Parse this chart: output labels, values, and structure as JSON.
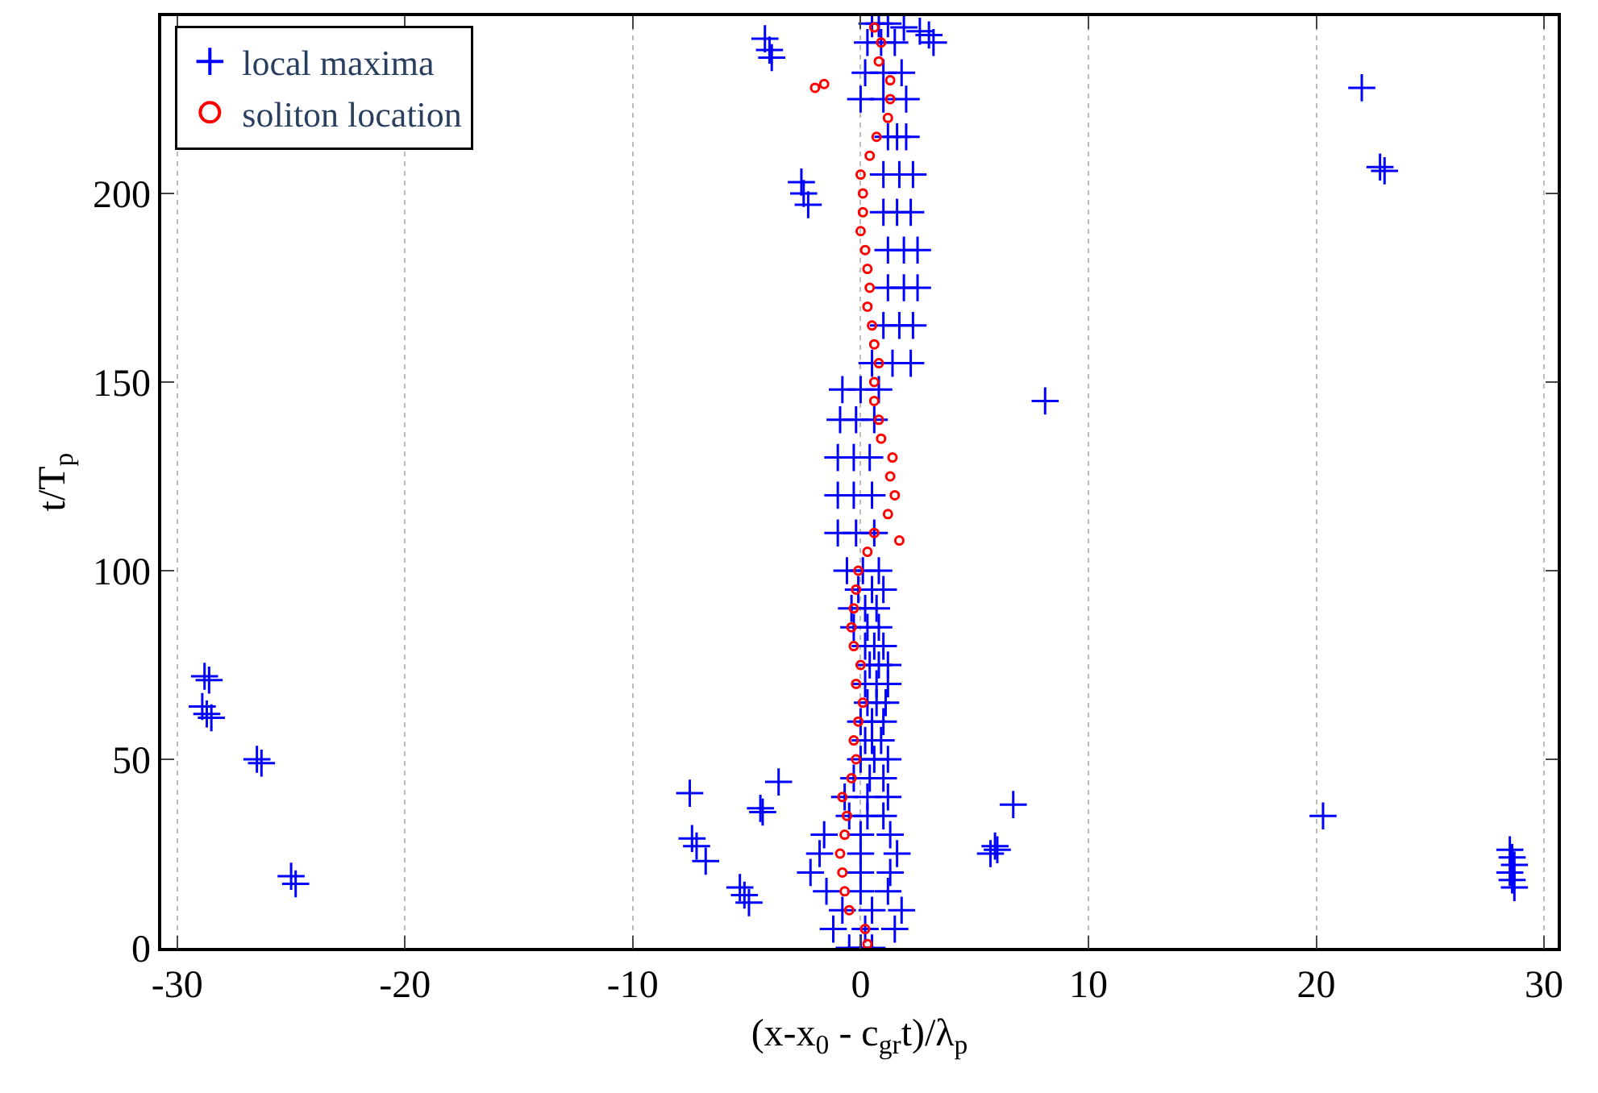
{
  "chart_data": {
    "type": "scatter",
    "xlabel": "(x-x$_{0}$ - c$_{gr}$t)/λ$_{p}$",
    "ylabel": "t/T$_{p}$",
    "xlim": [
      -30.7,
      30.6
    ],
    "ylim": [
      0,
      247
    ],
    "xticks": [
      -30,
      -20,
      -10,
      0,
      10,
      20,
      30
    ],
    "yticks": [
      0,
      50,
      100,
      150,
      200
    ],
    "grid": "x",
    "legend": "top left",
    "series": [
      {
        "name": "local maxima",
        "color": "#0000ff",
        "marker": "cross",
        "x": [
          -28.8,
          -28.6,
          -28.9,
          -28.7,
          -28.5,
          -26.5,
          -26.3,
          -25,
          -24.8,
          -7.5,
          -7.4,
          -7.2,
          -6.8,
          -5.3,
          -5.1,
          -4.9,
          -4.4,
          -4.3,
          -3.6,
          -4.2,
          -4.0,
          -3.9,
          -2.6,
          -2.5,
          -2.3,
          2.6,
          3.0,
          3.2,
          1.9,
          22,
          22.8,
          23,
          8.1,
          5.7,
          5.9,
          6.0,
          6.7,
          20.3,
          28.5,
          28.6,
          28.7,
          28.5,
          28.6,
          28.7,
          -0.5,
          0,
          0.5,
          -1.2,
          0.2,
          1.5,
          -0.8,
          0.5,
          1.8,
          -1.5,
          0,
          1.2,
          -2.2,
          0,
          1.3,
          -1.8,
          0,
          1.6,
          -1.6,
          0,
          1.3,
          -0.5,
          0.3,
          1.0,
          -0.7,
          0.3,
          1.2,
          -0.3,
          0.4,
          1.0,
          0,
          0.6,
          1.2,
          0.2,
          0.5,
          0.9,
          0,
          0.5,
          1.0,
          0.3,
          0.7,
          1.1,
          0.2,
          0.7,
          1.2,
          0.4,
          0.8,
          1.2,
          0.2,
          0.6,
          1.0,
          -0.3,
          0.3,
          0.8,
          -0.4,
          0.2,
          0.7,
          -0.1,
          0.5,
          1.0,
          -0.6,
          0.1,
          0.8,
          -1.0,
          -0.2,
          0.6,
          -1.0,
          -0.3,
          0.5,
          -1.0,
          -0.3,
          0.4,
          -0.9,
          -0.2,
          0.6,
          -0.8,
          0,
          0.8,
          0.5,
          1.4,
          2.2,
          1.0,
          1.7,
          2.3,
          1.2,
          1.9,
          2.5,
          1.2,
          1.9,
          2.5,
          1.0,
          1.6,
          2.2,
          1.0,
          1.7,
          2.3,
          1.2,
          1.6,
          2.0,
          0,
          1.0,
          2.0,
          0.2,
          1.0,
          1.8,
          0.3,
          0.9,
          1.5,
          0.5,
          0.8,
          1.2
        ],
        "values": [
          72,
          71,
          64,
          62,
          61,
          50,
          49,
          19,
          17,
          41,
          29,
          27,
          23,
          16,
          14,
          12,
          37,
          36,
          44,
          241,
          238,
          236,
          203,
          200,
          197,
          243,
          242,
          240,
          244,
          228,
          207,
          206,
          145,
          25,
          27,
          26,
          38,
          35,
          26,
          24,
          22,
          20,
          18,
          16,
          0,
          0,
          0,
          5,
          5,
          5,
          10,
          10,
          10,
          15,
          15,
          15,
          20,
          20,
          20,
          25,
          25,
          25,
          30,
          30,
          30,
          35,
          35,
          35,
          40,
          40,
          40,
          45,
          45,
          45,
          50,
          50,
          50,
          55,
          55,
          55,
          60,
          60,
          60,
          65,
          65,
          65,
          70,
          70,
          70,
          75,
          75,
          75,
          80,
          80,
          80,
          85,
          85,
          85,
          90,
          90,
          90,
          95,
          95,
          95,
          100,
          100,
          100,
          110,
          110,
          110,
          120,
          120,
          120,
          130,
          130,
          130,
          140,
          140,
          140,
          148,
          148,
          148,
          155,
          155,
          155,
          165,
          165,
          165,
          175,
          175,
          175,
          185,
          185,
          185,
          195,
          195,
          195,
          205,
          205,
          205,
          215,
          215,
          215,
          225,
          225,
          225,
          232,
          232,
          232,
          240,
          240,
          240,
          245,
          245,
          245
        ]
      },
      {
        "name": "soliton location",
        "color": "#ff0000",
        "marker": "circle",
        "x": [
          0.3,
          0.2,
          -0.5,
          -0.7,
          -0.8,
          -0.9,
          -0.7,
          -0.6,
          -0.8,
          -0.4,
          -0.2,
          -0.3,
          -0.1,
          0.1,
          -0.2,
          0.0,
          -0.3,
          -0.4,
          -0.3,
          -0.2,
          -0.1,
          0.3,
          0.6,
          1.2,
          1.5,
          1.3,
          1.4,
          0.9,
          0.8,
          0.6,
          0.6,
          0.8,
          0.6,
          0.5,
          0.3,
          0.4,
          0.3,
          0.2,
          0.0,
          0.1,
          0.1,
          0.0,
          0.4,
          0.7,
          1.2,
          1.3,
          1.3,
          0.8,
          0.9,
          0.6,
          -2.0,
          -1.6,
          1.7
        ],
        "values": [
          1,
          5,
          10,
          15,
          20,
          25,
          30,
          35,
          40,
          45,
          50,
          55,
          60,
          65,
          70,
          75,
          80,
          85,
          90,
          95,
          100,
          105,
          110,
          115,
          120,
          125,
          130,
          135,
          140,
          145,
          150,
          155,
          160,
          165,
          170,
          175,
          180,
          185,
          190,
          195,
          200,
          205,
          210,
          215,
          220,
          225,
          230,
          235,
          240,
          244,
          228,
          229,
          108
        ]
      }
    ]
  }
}
